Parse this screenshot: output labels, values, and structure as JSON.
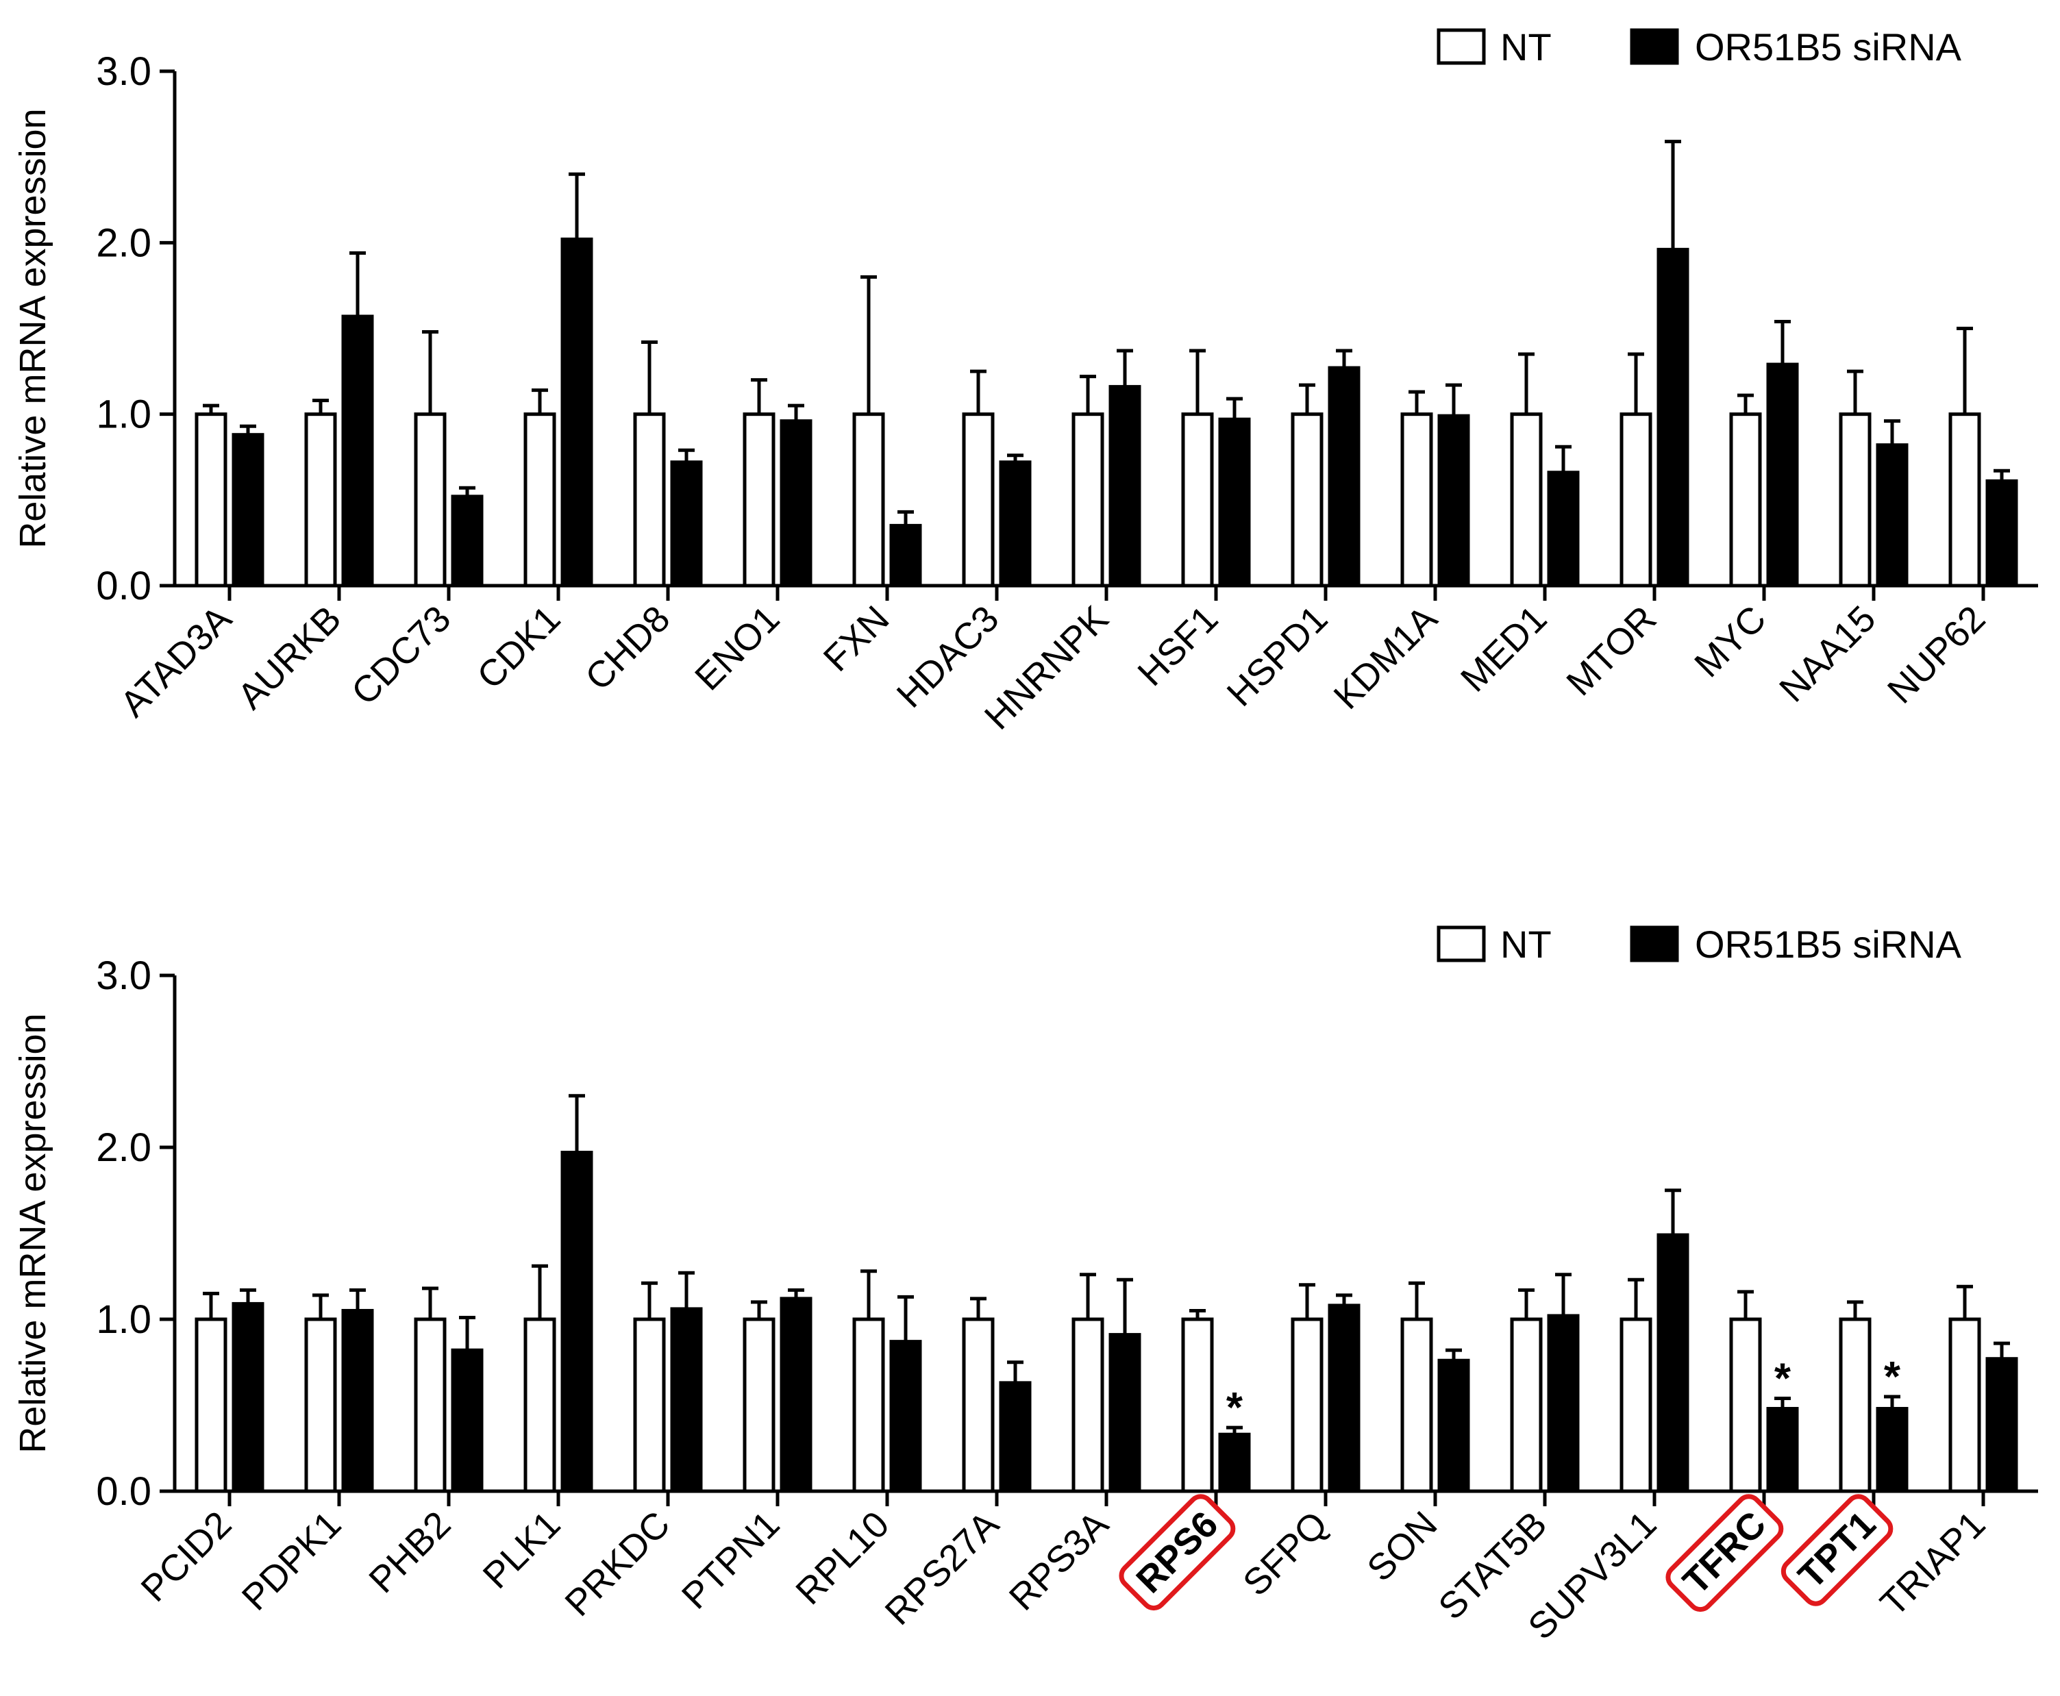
{
  "legend": {
    "nt_label": "NT",
    "sirna_label": "OR51B5 siRNA"
  },
  "colors": {
    "nt_fill": "#ffffff",
    "sirna_fill": "#000000",
    "highlight": "#e0191c"
  },
  "chart_data": [
    {
      "type": "bar",
      "ylabel": "Relative mRNA expression",
      "ylim": [
        0,
        3.0
      ],
      "yticks": [
        "0.0",
        "1.0",
        "2.0",
        "3.0"
      ],
      "legend_position": "top-right",
      "categories": [
        "ATAD3A",
        "AURKB",
        "CDC73",
        "CDK1",
        "CHD8",
        "ENO1",
        "FXN",
        "HDAC3",
        "HNRNPK",
        "HSF1",
        "HSPD1",
        "KDM1A",
        "MED1",
        "MTOR",
        "MYC",
        "NAA15",
        "NUP62"
      ],
      "series": [
        {
          "name": "NT",
          "values": [
            1.0,
            1.0,
            1.0,
            1.0,
            1.0,
            1.0,
            1.0,
            1.0,
            1.0,
            1.0,
            1.0,
            1.0,
            1.0,
            1.0,
            1.0,
            1.0,
            1.0
          ],
          "errors": [
            0.05,
            0.08,
            0.48,
            0.14,
            0.42,
            0.2,
            0.8,
            0.25,
            0.22,
            0.37,
            0.17,
            0.13,
            0.35,
            0.35,
            0.11,
            0.25,
            0.5
          ]
        },
        {
          "name": "OR51B5 siRNA",
          "values": [
            0.88,
            1.57,
            0.52,
            2.02,
            0.72,
            0.96,
            0.35,
            0.72,
            1.16,
            0.97,
            1.27,
            0.99,
            0.66,
            1.96,
            1.29,
            0.82,
            0.61
          ],
          "errors": [
            0.05,
            0.37,
            0.05,
            0.38,
            0.07,
            0.09,
            0.08,
            0.04,
            0.21,
            0.12,
            0.1,
            0.18,
            0.15,
            0.63,
            0.25,
            0.14,
            0.06
          ]
        }
      ],
      "significant": [],
      "highlighted": []
    },
    {
      "type": "bar",
      "ylabel": "Relative mRNA expression",
      "ylim": [
        0,
        3.0
      ],
      "yticks": [
        "0.0",
        "1.0",
        "2.0",
        "3.0"
      ],
      "legend_position": "top-right",
      "categories": [
        "PCID2",
        "PDPK1",
        "PHB2",
        "PLK1",
        "PRKDC",
        "PTPN1",
        "RPL10",
        "RPS27A",
        "RPS3A",
        "RPS6",
        "SFPQ",
        "SON",
        "STAT5B",
        "SUPV3L1",
        "TFRC",
        "TPT1",
        "TRIAP1"
      ],
      "series": [
        {
          "name": "NT",
          "values": [
            1.0,
            1.0,
            1.0,
            1.0,
            1.0,
            1.0,
            1.0,
            1.0,
            1.0,
            1.0,
            1.0,
            1.0,
            1.0,
            1.0,
            1.0,
            1.0,
            1.0
          ],
          "errors": [
            0.15,
            0.14,
            0.18,
            0.31,
            0.21,
            0.1,
            0.28,
            0.12,
            0.26,
            0.05,
            0.2,
            0.21,
            0.17,
            0.23,
            0.16,
            0.1,
            0.19
          ]
        },
        {
          "name": "OR51B5 siRNA",
          "values": [
            1.09,
            1.05,
            0.82,
            1.97,
            1.06,
            1.12,
            0.87,
            0.63,
            0.91,
            0.33,
            1.08,
            0.76,
            1.02,
            1.49,
            0.48,
            0.48,
            0.77
          ],
          "errors": [
            0.08,
            0.12,
            0.19,
            0.33,
            0.21,
            0.05,
            0.26,
            0.12,
            0.32,
            0.04,
            0.06,
            0.06,
            0.24,
            0.26,
            0.06,
            0.07,
            0.09
          ]
        }
      ],
      "significant": [
        "RPS6",
        "TFRC",
        "TPT1"
      ],
      "significance_mark": "*",
      "highlighted": [
        "RPS6",
        "TFRC",
        "TPT1"
      ]
    }
  ]
}
